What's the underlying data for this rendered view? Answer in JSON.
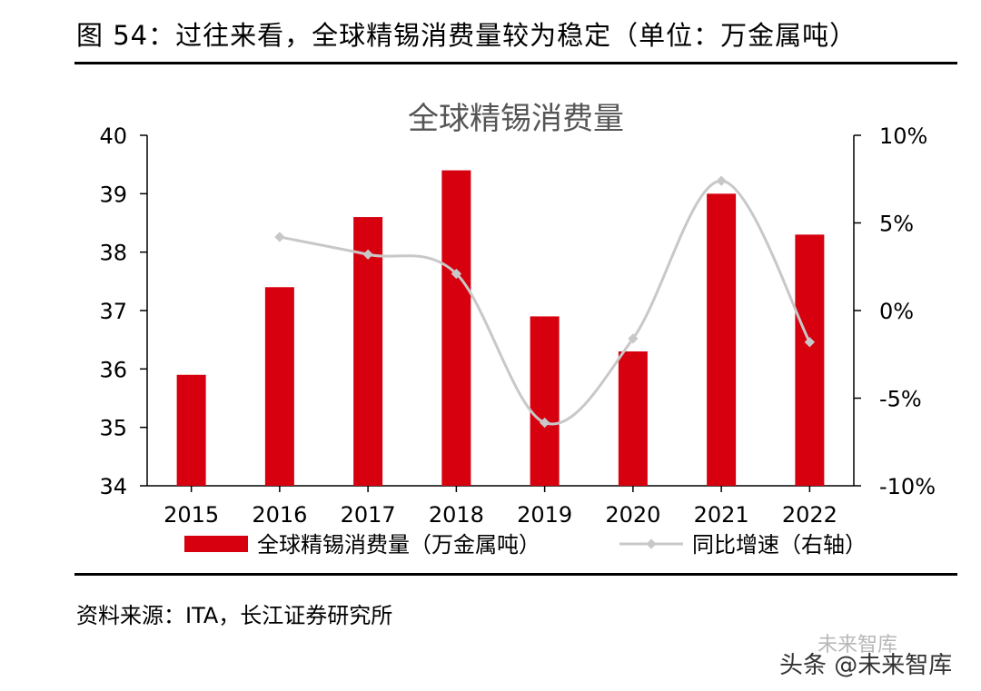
{
  "figure": {
    "title": "图 54：过往来看，全球精锡消费量较为稳定（单位：万金属吨）",
    "source": "资料来源：ITA，长江证券研究所",
    "watermark": "头条 @未来智库",
    "watermark_logo": "未来智库"
  },
  "chart_data": {
    "type": "bar",
    "title": "全球精锡消费量",
    "categories": [
      "2015",
      "2016",
      "2017",
      "2018",
      "2019",
      "2020",
      "2021",
      "2022"
    ],
    "series": [
      {
        "name": "全球精锡消费量（万金属吨）",
        "type": "bar",
        "axis": "left",
        "color": "#d7000f",
        "values": [
          35.9,
          37.4,
          38.6,
          39.4,
          36.9,
          36.3,
          39.0,
          38.3
        ]
      },
      {
        "name": "同比增速（右轴）",
        "type": "line",
        "axis": "right",
        "color": "#c8c8c8",
        "values": [
          null,
          4.2,
          3.2,
          2.1,
          -6.4,
          -1.6,
          7.4,
          -1.8
        ]
      }
    ],
    "y_left": {
      "min": 34,
      "max": 40,
      "ticks": [
        "34",
        "35",
        "36",
        "37",
        "38",
        "39",
        "40"
      ]
    },
    "y_right": {
      "min": -10,
      "max": 10,
      "ticks": [
        "10%",
        "5%",
        "0%",
        "-5%",
        "-10%"
      ],
      "unit": "%"
    },
    "grid": false,
    "legend": "bottom"
  }
}
